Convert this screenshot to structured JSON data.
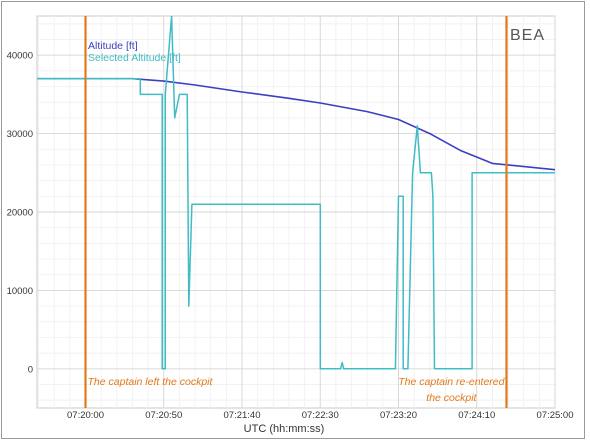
{
  "chart_data": {
    "type": "line",
    "title": "",
    "xlabel": "UTC (hh:mm:ss)",
    "ylabel": "",
    "logo": "BEA",
    "x_unit": "seconds",
    "xlim": [
      "07:19:29",
      "07:25:00"
    ],
    "ylim": [
      -5000,
      45000
    ],
    "xticks": [
      "07:20:00",
      "07:20:50",
      "07:21:40",
      "07:22:30",
      "07:23:20",
      "07:24:10",
      "07:25:00"
    ],
    "yticks": [
      0,
      10000,
      20000,
      30000,
      40000
    ],
    "grid": true,
    "legend_position": "top-left",
    "series": [
      {
        "name": "Altitude [ft]",
        "color": "#3b3fc2",
        "points": [
          [
            "07:19:29",
            37000
          ],
          [
            "07:20:30",
            37000
          ],
          [
            "07:20:50",
            36700
          ],
          [
            "07:21:10",
            36200
          ],
          [
            "07:21:40",
            35300
          ],
          [
            "07:22:10",
            34500
          ],
          [
            "07:22:30",
            33900
          ],
          [
            "07:23:00",
            32800
          ],
          [
            "07:23:20",
            31800
          ],
          [
            "07:23:40",
            30000
          ],
          [
            "07:24:00",
            27800
          ],
          [
            "07:24:20",
            26200
          ],
          [
            "07:25:00",
            25400
          ]
        ]
      },
      {
        "name": "Selected Altitude [ft]",
        "color": "#3fbcc4",
        "points": [
          [
            "07:19:29",
            37000
          ],
          [
            "07:20:35",
            37000
          ],
          [
            "07:20:35",
            35000
          ],
          [
            "07:20:49",
            35000
          ],
          [
            "07:20:49",
            0
          ],
          [
            "07:20:51",
            0
          ],
          [
            "07:20:51",
            35000
          ],
          [
            "07:20:55",
            45000
          ],
          [
            "07:20:57",
            32000
          ],
          [
            "07:21:00",
            35000
          ],
          [
            "07:21:05",
            35000
          ],
          [
            "07:21:06",
            8000
          ],
          [
            "07:21:08",
            21000
          ],
          [
            "07:22:30",
            21000
          ],
          [
            "07:22:30",
            0
          ],
          [
            "07:22:43",
            0
          ],
          [
            "07:22:44",
            800
          ],
          [
            "07:22:45",
            0
          ],
          [
            "07:23:18",
            0
          ],
          [
            "07:23:20",
            22000
          ],
          [
            "07:23:23",
            22000
          ],
          [
            "07:23:23",
            0
          ],
          [
            "07:23:26",
            0
          ],
          [
            "07:23:29",
            25000
          ],
          [
            "07:23:32",
            31000
          ],
          [
            "07:23:34",
            25000
          ],
          [
            "07:23:41",
            25000
          ],
          [
            "07:23:42",
            22000
          ],
          [
            "07:23:43",
            0
          ],
          [
            "07:24:07",
            0
          ],
          [
            "07:24:07",
            25000
          ],
          [
            "07:25:00",
            25000
          ]
        ]
      }
    ],
    "events": [
      {
        "time": "07:20:00",
        "label": "The captain left the cockpit",
        "color": "#e07a1a"
      },
      {
        "time": "07:24:29",
        "label": "The captain re-entered\nthe cockpit",
        "color": "#e07a1a"
      }
    ]
  }
}
